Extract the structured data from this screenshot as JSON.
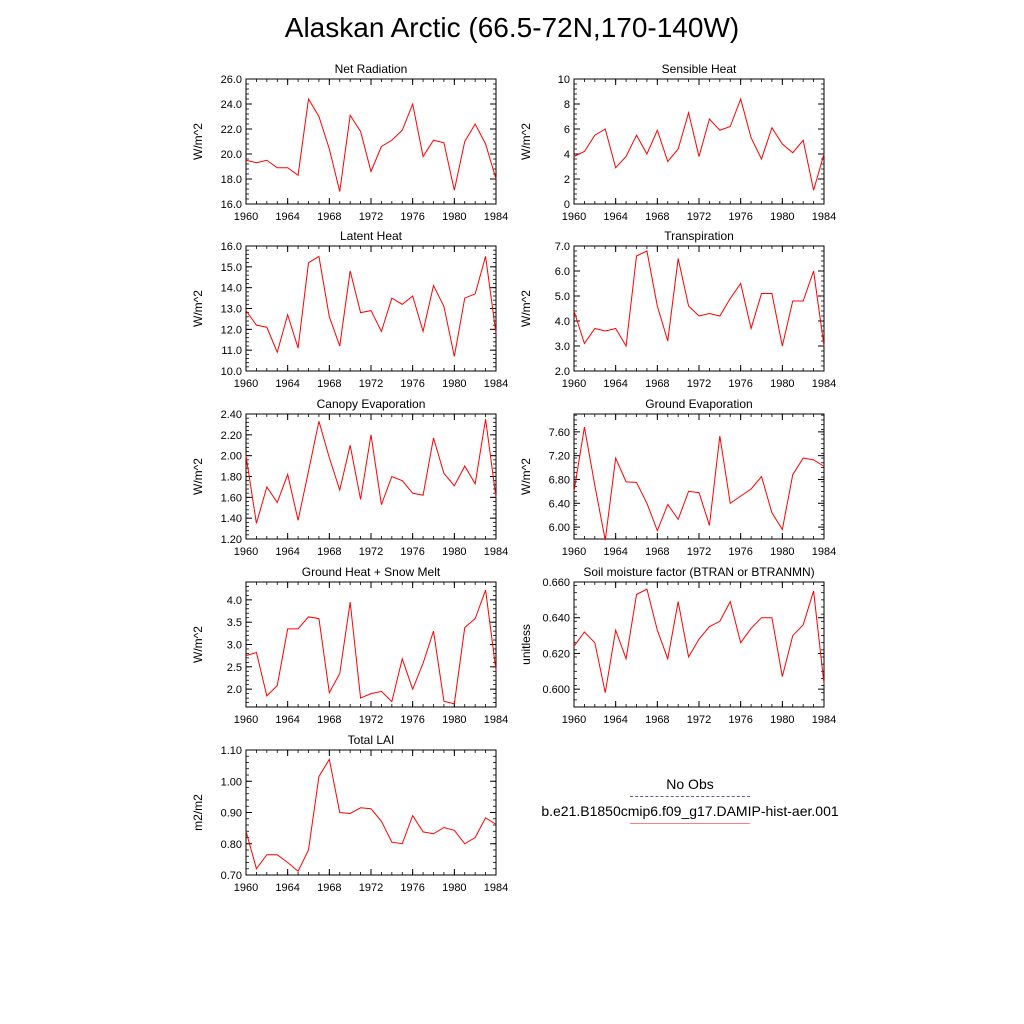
{
  "title": "Alaskan Arctic (66.5-72N,170-140W)",
  "colors": {
    "series": "#ff0000",
    "obs": "#5a5aa8",
    "legend_model": "#ff8080"
  },
  "legend": {
    "obs_label": "No Obs",
    "model_label": "b.e21.B1850cmip6.f09_g17.DAMIP-hist-aer.001"
  },
  "chart_data": [
    {
      "type": "line",
      "title": "Net Radiation",
      "ylabel": "W/m^2",
      "xlim": [
        1960,
        1984
      ],
      "ylim": [
        16,
        26
      ],
      "xticks": [
        1960,
        1964,
        1968,
        1972,
        1976,
        1980,
        1984
      ],
      "yticks": [
        16,
        18,
        20,
        22,
        24,
        26
      ],
      "ytick_labels": [
        "16.0",
        "18.0",
        "20.0",
        "22.0",
        "24.0",
        "26.0"
      ],
      "x": [
        1960,
        1961,
        1962,
        1963,
        1964,
        1965,
        1966,
        1967,
        1968,
        1969,
        1970,
        1971,
        1972,
        1973,
        1974,
        1975,
        1976,
        1977,
        1978,
        1979,
        1980,
        1981,
        1982,
        1983,
        1984
      ],
      "series": [
        {
          "values": [
            19.5,
            19.3,
            19.5,
            18.9,
            18.9,
            18.3,
            24.4,
            23.0,
            20.4,
            17.0,
            23.1,
            21.8,
            18.6,
            20.6,
            21.1,
            21.9,
            24.0,
            19.8,
            21.1,
            20.9,
            17.1,
            21.0,
            22.4,
            20.8,
            18.0
          ]
        }
      ]
    },
    {
      "type": "line",
      "title": "Sensible Heat",
      "ylabel": "W/m^2",
      "xlim": [
        1960,
        1984
      ],
      "ylim": [
        0,
        10
      ],
      "xticks": [
        1960,
        1964,
        1968,
        1972,
        1976,
        1980,
        1984
      ],
      "yticks": [
        0,
        2,
        4,
        6,
        8,
        10
      ],
      "ytick_labels": [
        "0",
        "2",
        "4",
        "6",
        "8",
        "10"
      ],
      "x": [
        1960,
        1961,
        1962,
        1963,
        1964,
        1965,
        1966,
        1967,
        1968,
        1969,
        1970,
        1971,
        1972,
        1973,
        1974,
        1975,
        1976,
        1977,
        1978,
        1979,
        1980,
        1981,
        1982,
        1983,
        1984
      ],
      "series": [
        {
          "values": [
            3.8,
            4.2,
            5.5,
            6.0,
            2.9,
            3.8,
            5.5,
            4.0,
            5.9,
            3.4,
            4.4,
            7.3,
            3.8,
            6.8,
            5.9,
            6.2,
            8.4,
            5.3,
            3.6,
            6.1,
            4.8,
            4.1,
            5.1,
            1.1,
            4.0
          ]
        }
      ]
    },
    {
      "type": "line",
      "title": "Latent Heat",
      "ylabel": "W/m^2",
      "xlim": [
        1960,
        1984
      ],
      "ylim": [
        10,
        16
      ],
      "xticks": [
        1960,
        1964,
        1968,
        1972,
        1976,
        1980,
        1984
      ],
      "yticks": [
        10,
        11,
        12,
        13,
        14,
        15,
        16
      ],
      "ytick_labels": [
        "10.0",
        "11.0",
        "12.0",
        "13.0",
        "14.0",
        "15.0",
        "16.0"
      ],
      "x": [
        1960,
        1961,
        1962,
        1963,
        1964,
        1965,
        1966,
        1967,
        1968,
        1969,
        1970,
        1971,
        1972,
        1973,
        1974,
        1975,
        1976,
        1977,
        1978,
        1979,
        1980,
        1981,
        1982,
        1983,
        1984
      ],
      "series": [
        {
          "values": [
            12.9,
            12.2,
            12.1,
            10.9,
            12.7,
            11.1,
            15.2,
            15.5,
            12.6,
            11.2,
            14.8,
            12.8,
            12.9,
            11.9,
            13.5,
            13.2,
            13.6,
            11.9,
            14.1,
            13.1,
            10.7,
            13.5,
            13.7,
            15.5,
            11.8
          ]
        }
      ]
    },
    {
      "type": "line",
      "title": "Transpiration",
      "ylabel": "W/m^2",
      "xlim": [
        1960,
        1984
      ],
      "ylim": [
        2,
        7
      ],
      "xticks": [
        1960,
        1964,
        1968,
        1972,
        1976,
        1980,
        1984
      ],
      "yticks": [
        2,
        3,
        4,
        5,
        6,
        7
      ],
      "ytick_labels": [
        "2.0",
        "3.0",
        "4.0",
        "5.0",
        "6.0",
        "7.0"
      ],
      "x": [
        1960,
        1961,
        1962,
        1963,
        1964,
        1965,
        1966,
        1967,
        1968,
        1969,
        1970,
        1971,
        1972,
        1973,
        1974,
        1975,
        1976,
        1977,
        1978,
        1979,
        1980,
        1981,
        1982,
        1983,
        1984
      ],
      "series": [
        {
          "values": [
            4.4,
            3.1,
            3.7,
            3.6,
            3.7,
            3.0,
            6.6,
            6.8,
            4.6,
            3.2,
            6.5,
            4.6,
            4.2,
            4.3,
            4.2,
            4.9,
            5.5,
            3.7,
            5.1,
            5.1,
            3.0,
            4.8,
            4.8,
            6.0,
            3.0
          ]
        }
      ]
    },
    {
      "type": "line",
      "title": "Canopy Evaporation",
      "ylabel": "W/m^2",
      "xlim": [
        1960,
        1984
      ],
      "ylim": [
        1.2,
        2.4
      ],
      "xticks": [
        1960,
        1964,
        1968,
        1972,
        1976,
        1980,
        1984
      ],
      "yticks": [
        1.2,
        1.4,
        1.6,
        1.8,
        2.0,
        2.2,
        2.4
      ],
      "ytick_labels": [
        "1.20",
        "1.40",
        "1.60",
        "1.80",
        "2.00",
        "2.20",
        "2.40"
      ],
      "x": [
        1960,
        1961,
        1962,
        1963,
        1964,
        1965,
        1966,
        1967,
        1968,
        1969,
        1970,
        1971,
        1972,
        1973,
        1974,
        1975,
        1976,
        1977,
        1978,
        1979,
        1980,
        1981,
        1982,
        1983,
        1984
      ],
      "series": [
        {
          "values": [
            2.0,
            1.35,
            1.7,
            1.55,
            1.82,
            1.38,
            1.85,
            2.33,
            1.98,
            1.67,
            2.1,
            1.58,
            2.2,
            1.53,
            1.8,
            1.76,
            1.64,
            1.62,
            2.17,
            1.83,
            1.71,
            1.9,
            1.73,
            2.35,
            1.6
          ]
        }
      ]
    },
    {
      "type": "line",
      "title": "Ground Evaporation",
      "ylabel": "W/m^2",
      "xlim": [
        1960,
        1984
      ],
      "ylim": [
        5.8,
        7.9
      ],
      "xticks": [
        1960,
        1964,
        1968,
        1972,
        1976,
        1980,
        1984
      ],
      "yticks": [
        6.0,
        6.4,
        6.8,
        7.2,
        7.6
      ],
      "ytick_labels": [
        "6.00",
        "6.40",
        "6.80",
        "7.20",
        "7.60"
      ],
      "x": [
        1960,
        1961,
        1962,
        1963,
        1964,
        1965,
        1966,
        1967,
        1968,
        1969,
        1970,
        1971,
        1972,
        1973,
        1974,
        1975,
        1976,
        1977,
        1978,
        1979,
        1980,
        1981,
        1982,
        1983,
        1984
      ],
      "series": [
        {
          "values": [
            6.6,
            7.68,
            6.7,
            5.78,
            7.16,
            6.76,
            6.75,
            6.4,
            5.94,
            6.38,
            6.13,
            6.6,
            6.58,
            6.03,
            7.53,
            6.4,
            6.52,
            6.64,
            6.85,
            6.24,
            5.96,
            6.88,
            7.16,
            7.13,
            7.02
          ]
        }
      ]
    },
    {
      "type": "line",
      "title": "Ground Heat + Snow Melt",
      "ylabel": "W/m^2",
      "xlim": [
        1960,
        1984
      ],
      "ylim": [
        1.6,
        4.4
      ],
      "xticks": [
        1960,
        1964,
        1968,
        1972,
        1976,
        1980,
        1984
      ],
      "yticks": [
        2.0,
        2.5,
        3.0,
        3.5,
        4.0
      ],
      "ytick_labels": [
        "2.0",
        "2.5",
        "3.0",
        "3.5",
        "4.0"
      ],
      "x": [
        1960,
        1961,
        1962,
        1963,
        1964,
        1965,
        1966,
        1967,
        1968,
        1969,
        1970,
        1971,
        1972,
        1973,
        1974,
        1975,
        1976,
        1977,
        1978,
        1979,
        1980,
        1981,
        1982,
        1983,
        1984
      ],
      "series": [
        {
          "values": [
            2.75,
            2.82,
            1.85,
            2.08,
            3.35,
            3.35,
            3.62,
            3.58,
            1.92,
            2.35,
            3.95,
            1.8,
            1.9,
            1.95,
            1.72,
            2.68,
            2.0,
            2.58,
            3.3,
            1.73,
            1.67,
            3.38,
            3.58,
            4.22,
            2.42
          ]
        }
      ]
    },
    {
      "type": "line",
      "title": "Soil moisture factor (BTRAN or BTRANMN)",
      "ylabel": "unitless",
      "xlim": [
        1960,
        1984
      ],
      "ylim": [
        0.59,
        0.66
      ],
      "xticks": [
        1960,
        1964,
        1968,
        1972,
        1976,
        1980,
        1984
      ],
      "yticks": [
        0.6,
        0.62,
        0.64,
        0.66
      ],
      "ytick_labels": [
        "0.600",
        "0.620",
        "0.640",
        "0.660"
      ],
      "x": [
        1960,
        1961,
        1962,
        1963,
        1964,
        1965,
        1966,
        1967,
        1968,
        1969,
        1970,
        1971,
        1972,
        1973,
        1974,
        1975,
        1976,
        1977,
        1978,
        1979,
        1980,
        1981,
        1982,
        1983,
        1984
      ],
      "series": [
        {
          "values": [
            0.624,
            0.632,
            0.626,
            0.598,
            0.633,
            0.617,
            0.653,
            0.656,
            0.633,
            0.617,
            0.649,
            0.618,
            0.628,
            0.635,
            0.638,
            0.649,
            0.626,
            0.634,
            0.64,
            0.64,
            0.607,
            0.63,
            0.636,
            0.655,
            0.603
          ]
        }
      ]
    },
    {
      "type": "line",
      "title": "Total LAI",
      "ylabel": "m2/m2",
      "xlim": [
        1960,
        1984
      ],
      "ylim": [
        0.7,
        1.1
      ],
      "xticks": [
        1960,
        1964,
        1968,
        1972,
        1976,
        1980,
        1984
      ],
      "yticks": [
        0.7,
        0.8,
        0.9,
        1.0,
        1.1
      ],
      "ytick_labels": [
        "0.70",
        "0.80",
        "0.90",
        "1.00",
        "1.10"
      ],
      "x": [
        1960,
        1961,
        1962,
        1963,
        1964,
        1965,
        1966,
        1967,
        1968,
        1969,
        1970,
        1971,
        1972,
        1973,
        1974,
        1975,
        1976,
        1977,
        1978,
        1979,
        1980,
        1981,
        1982,
        1983,
        1984
      ],
      "series": [
        {
          "values": [
            0.84,
            0.72,
            0.765,
            0.765,
            0.74,
            0.712,
            0.78,
            1.015,
            1.07,
            0.9,
            0.897,
            0.915,
            0.912,
            0.872,
            0.805,
            0.8,
            0.89,
            0.838,
            0.832,
            0.852,
            0.843,
            0.8,
            0.82,
            0.883,
            0.862
          ]
        }
      ]
    }
  ]
}
